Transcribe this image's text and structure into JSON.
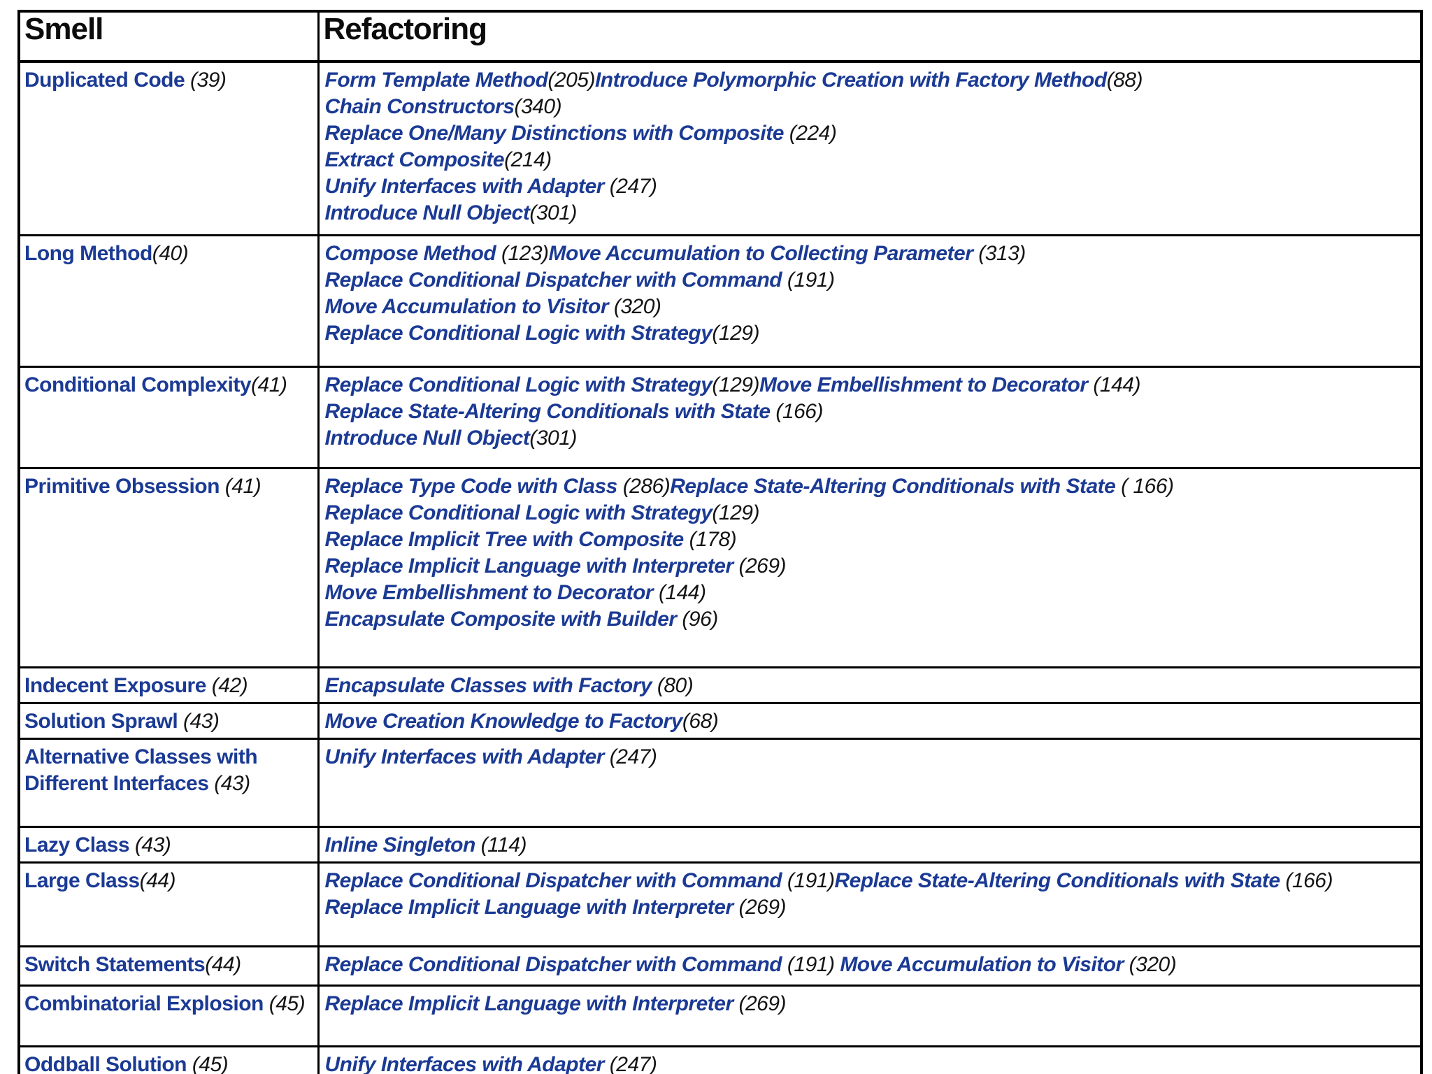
{
  "colors": {
    "link_blue": "#1b3a94",
    "page_black": "#141414",
    "border_black": "#000000",
    "background": "#ffffff"
  },
  "header": {
    "smell": "Smell",
    "refactoring": "Refactoring"
  },
  "rows": [
    {
      "smell": {
        "name": "Duplicated Code",
        "page": " (39)"
      },
      "lines": [
        [
          {
            "name": "Form Template Method",
            "page": "(205)"
          },
          {
            "name": "Introduce Polymorphic Creation with Factory Method",
            "page": "(88)"
          }
        ],
        [
          {
            "name": "Chain Constructors",
            "page": "(340)"
          }
        ],
        [
          {
            "name": "Replace One/Many Distinctions with Composite",
            "page": " (224)"
          }
        ],
        [
          {
            "name": "Extract Composite",
            "page": "(214)"
          }
        ],
        [
          {
            "name": "Unify Interfaces with Adapter",
            "page": " (247)"
          }
        ],
        [
          {
            "name": "Introduce Null Object",
            "page": "(301)"
          }
        ]
      ]
    },
    {
      "smell": {
        "name": "Long Method",
        "page": "(40)"
      },
      "lines": [
        [
          {
            "name": "Compose Method",
            "page": " (123)"
          },
          {
            "name": "Move Accumulation to Collecting Parameter",
            "page": " (313)"
          }
        ],
        [
          {
            "name": "Replace Conditional Dispatcher with Command",
            "page": " (191)"
          }
        ],
        [
          {
            "name": "Move Accumulation to Visitor",
            "page": " (320)"
          }
        ],
        [
          {
            "name": "Replace Conditional Logic with Strategy",
            "page": "(129)"
          }
        ]
      ]
    },
    {
      "smell": {
        "name": "Conditional Complexity",
        "page": "(41)"
      },
      "lines": [
        [
          {
            "name": "Replace Conditional Logic with Strategy",
            "page": "(129)"
          },
          {
            "name": "Move Embellishment to Decorator",
            "page": " (144)"
          }
        ],
        [
          {
            "name": "Replace State-Altering Conditionals with State",
            "page": " (166)"
          }
        ],
        [
          {
            "name": "Introduce Null Object",
            "page": "(301)"
          }
        ]
      ]
    },
    {
      "smell": {
        "name": "Primitive Obsession",
        "page": " (41)"
      },
      "lines": [
        [
          {
            "name": "Replace Type Code with Class",
            "page": " (286)"
          },
          {
            "name": "Replace State-Altering Conditionals with State",
            "page": " ( 166)"
          }
        ],
        [
          {
            "name": "Replace Conditional Logic with Strategy",
            "page": "(129)"
          }
        ],
        [
          {
            "name": "Replace Implicit Tree with Composite",
            "page": " (178)"
          }
        ],
        [
          {
            "name": "Replace Implicit Language with Interpreter",
            "page": " (269)"
          }
        ],
        [
          {
            "name": "Move Embellishment to Decorator",
            "page": " (144)"
          }
        ],
        [
          {
            "name": "Encapsulate Composite with Builder",
            "page": " (96)"
          }
        ]
      ]
    },
    {
      "smell": {
        "name": "Indecent Exposure",
        "page": " (42)"
      },
      "lines": [
        [
          {
            "name": "Encapsulate Classes with Factory",
            "page": " (80)"
          }
        ]
      ]
    },
    {
      "smell": {
        "name": "Solution Sprawl",
        "page": " (43)"
      },
      "lines": [
        [
          {
            "name": "Move Creation Knowledge to Factory",
            "page": "(68)"
          }
        ]
      ]
    },
    {
      "smell": {
        "name": "Alternative Classes with Different Interfaces",
        "page": " (43)"
      },
      "lines": [
        [
          {
            "name": "Unify Interfaces with Adapter",
            "page": " (247)"
          }
        ]
      ]
    },
    {
      "smell": {
        "name": "Lazy Class",
        "page": " (43)"
      },
      "lines": [
        [
          {
            "name": "Inline Singleton",
            "page": " (114)"
          }
        ]
      ]
    },
    {
      "smell": {
        "name": "Large Class",
        "page": "(44)"
      },
      "lines": [
        [
          {
            "name": "Replace Conditional Dispatcher with Command",
            "page": " (191)"
          },
          {
            "name": "Replace State-Altering Conditionals with State",
            "page": " (166)"
          }
        ],
        [
          {
            "name": "Replace Implicit Language with Interpreter",
            "page": " (269)"
          }
        ]
      ]
    },
    {
      "smell": {
        "name": "Switch Statements",
        "page": "(44)"
      },
      "lines": [
        [
          {
            "name": "Replace Conditional Dispatcher with Command",
            "page": " (191) "
          },
          {
            "name": "Move Accumulation to Visitor",
            "page": " (320)"
          }
        ]
      ]
    },
    {
      "smell": {
        "name": "Combinatorial Explosion",
        "page": " (45)"
      },
      "lines": [
        [
          {
            "name": "Replace Implicit Language with Interpreter",
            "page": " (269)"
          }
        ]
      ]
    },
    {
      "smell": {
        "name": "Oddball Solution",
        "page": " (45)"
      },
      "lines": [
        [
          {
            "name": "Unify Interfaces with Adapter",
            "page": " (247)"
          }
        ]
      ]
    }
  ]
}
